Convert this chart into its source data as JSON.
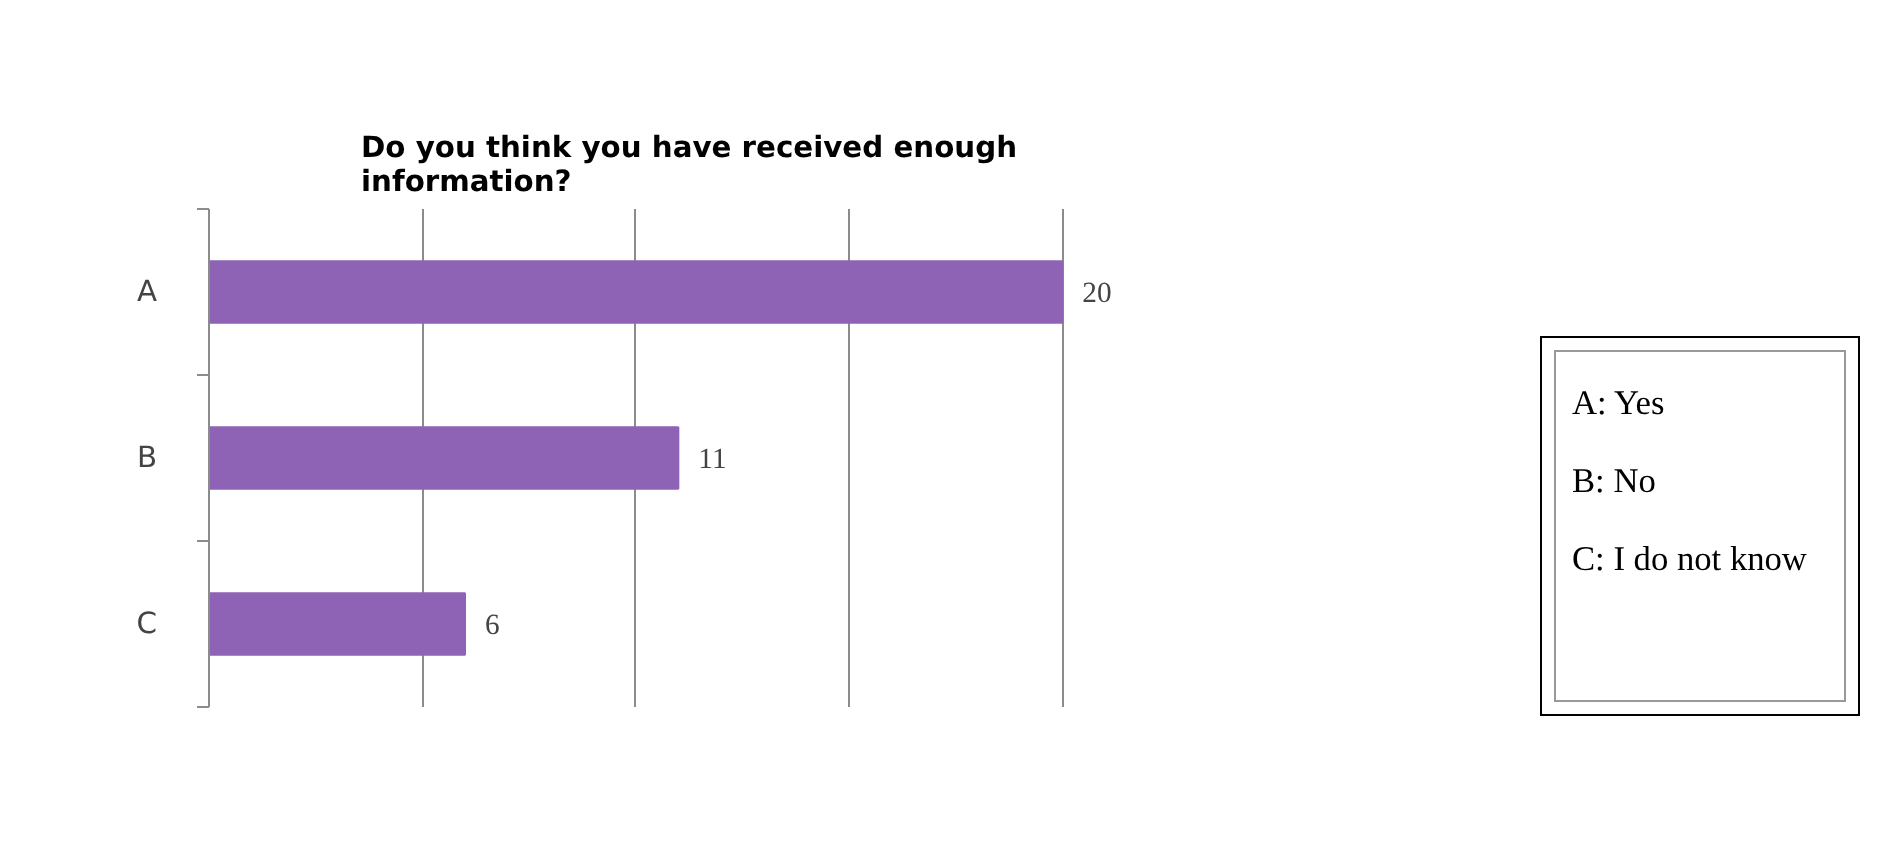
{
  "chart_data": {
    "type": "bar",
    "orientation": "horizontal",
    "title": "Do you think you have received enough information?",
    "categories": [
      "A",
      "B",
      "C"
    ],
    "values": [
      20,
      11,
      6
    ],
    "color": "#8e63b5",
    "data_labels": true,
    "grid": "x",
    "annotations": [
      "A: Yes",
      "B: No",
      "C: I do not know"
    ]
  }
}
